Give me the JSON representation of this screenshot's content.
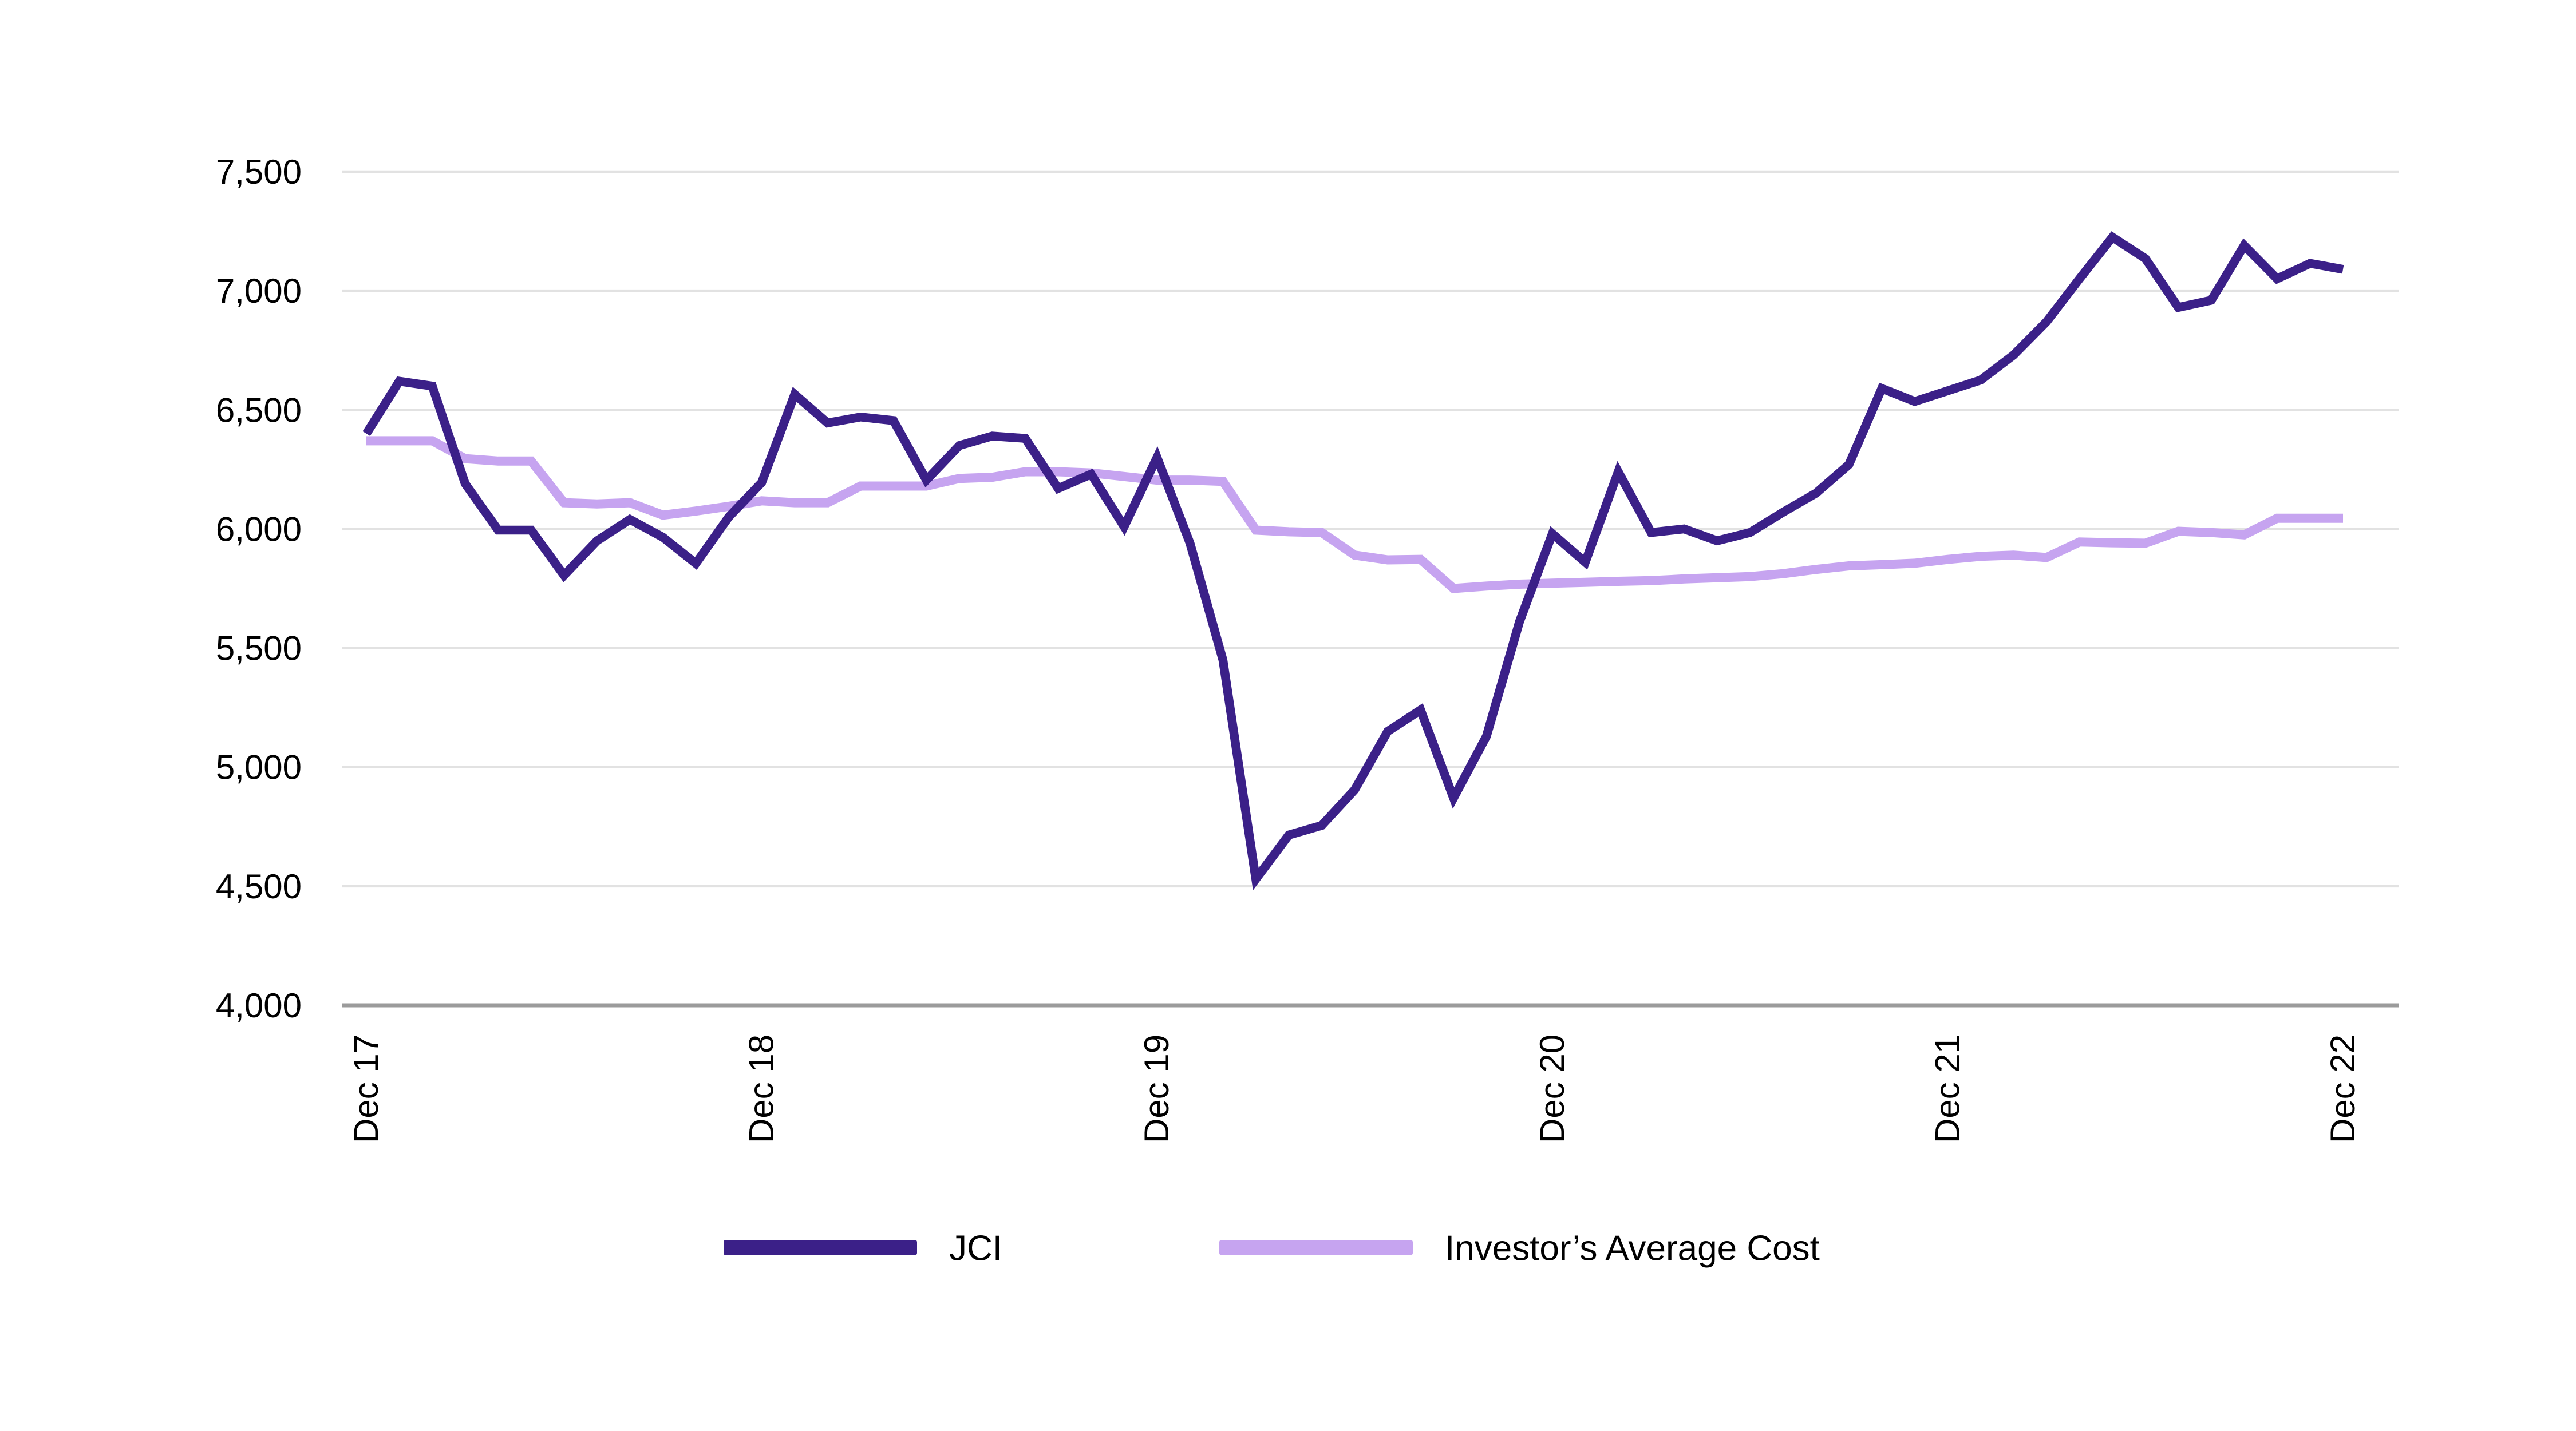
{
  "chart_data": {
    "type": "line",
    "title": "",
    "xlabel": "",
    "ylabel": "",
    "grid": "horizontal",
    "legend_position": "bottom",
    "background_color": "#ffffff",
    "gridline_color": "#e2e2e2",
    "axis_line_color": "#9b9b9b",
    "ylim": [
      4000,
      7500
    ],
    "y_tick_step": 500,
    "y_tick_labels": [
      "4,000",
      "4,500",
      "5,000",
      "5,500",
      "6,000",
      "6,500",
      "7,000",
      "7,500"
    ],
    "x_tick_labels": [
      "Dec 17",
      "Dec 18",
      "Dec 19",
      "Dec 20",
      "Dec 21",
      "Dec 22"
    ],
    "x_tick_positions": [
      0,
      12,
      24,
      36,
      48,
      60
    ],
    "categories": [
      "Dec 17",
      "Jan 18",
      "Feb 18",
      "Mar 18",
      "Apr 18",
      "May 18",
      "Jun 18",
      "Jul 18",
      "Aug 18",
      "Sep 18",
      "Oct 18",
      "Nov 18",
      "Dec 18",
      "Jan 19",
      "Feb 19",
      "Mar 19",
      "Apr 19",
      "May 19",
      "Jun 19",
      "Jul 19",
      "Aug 19",
      "Sep 19",
      "Oct 19",
      "Nov 19",
      "Dec 19",
      "Jan 20",
      "Feb 20",
      "Mar 20",
      "Apr 20",
      "May 20",
      "Jun 20",
      "Jul 20",
      "Aug 20",
      "Sep 20",
      "Oct 20",
      "Nov 20",
      "Dec 20",
      "Jan 21",
      "Feb 21",
      "Mar 21",
      "Apr 21",
      "May 21",
      "Jun 21",
      "Jul 21",
      "Aug 21",
      "Sep 21",
      "Oct 21",
      "Nov 21",
      "Dec 21",
      "Jan 22",
      "Feb 22",
      "Mar 22",
      "Apr 22",
      "May 22",
      "Jun 22",
      "Jul 22",
      "Aug 22",
      "Sep 22",
      "Oct 22",
      "Nov 22",
      "Dec 22"
    ],
    "series": [
      {
        "name": "JCI",
        "color": "#3B2088",
        "stroke_width": 15.5,
        "values": [
          6400,
          6620,
          6600,
          6190,
          5995,
          5995,
          5805,
          5950,
          6040,
          5965,
          5855,
          6050,
          6195,
          6565,
          6445,
          6470,
          6455,
          6205,
          6350,
          6390,
          6380,
          6170,
          6230,
          6010,
          6300,
          5940,
          5450,
          4530,
          4715,
          4755,
          4905,
          5150,
          5240,
          4870,
          5130,
          5610,
          5980,
          5860,
          6240,
          5985,
          6000,
          5950,
          5985,
          6070,
          6150,
          6270,
          6590,
          6535,
          6580,
          6625,
          6730,
          6870,
          7050,
          7225,
          7135,
          6930,
          6960,
          7190,
          7050,
          7115,
          7090
        ]
      },
      {
        "name": "Investor’s Average Cost",
        "color": "#C6A4F0",
        "stroke_width": 16,
        "values": [
          6370,
          6370,
          6370,
          6295,
          6285,
          6285,
          6110,
          6105,
          6110,
          6058,
          6075,
          6095,
          6118,
          6110,
          6110,
          6180,
          6180,
          6180,
          6212,
          6217,
          6240,
          6240,
          6235,
          6220,
          6205,
          6205,
          6200,
          5995,
          5988,
          5985,
          5890,
          5870,
          5872,
          5750,
          5760,
          5768,
          5772,
          5776,
          5780,
          5783,
          5790,
          5795,
          5800,
          5812,
          5830,
          5845,
          5850,
          5856,
          5872,
          5885,
          5890,
          5880,
          5945,
          5942,
          5940,
          5990,
          5985,
          5975,
          6045,
          6045,
          6045
        ]
      }
    ]
  },
  "legend": {
    "items": [
      {
        "label": "JCI",
        "color": "#3B2088"
      },
      {
        "label": "Investor’s Average Cost",
        "color": "#C6A4F0"
      }
    ]
  }
}
